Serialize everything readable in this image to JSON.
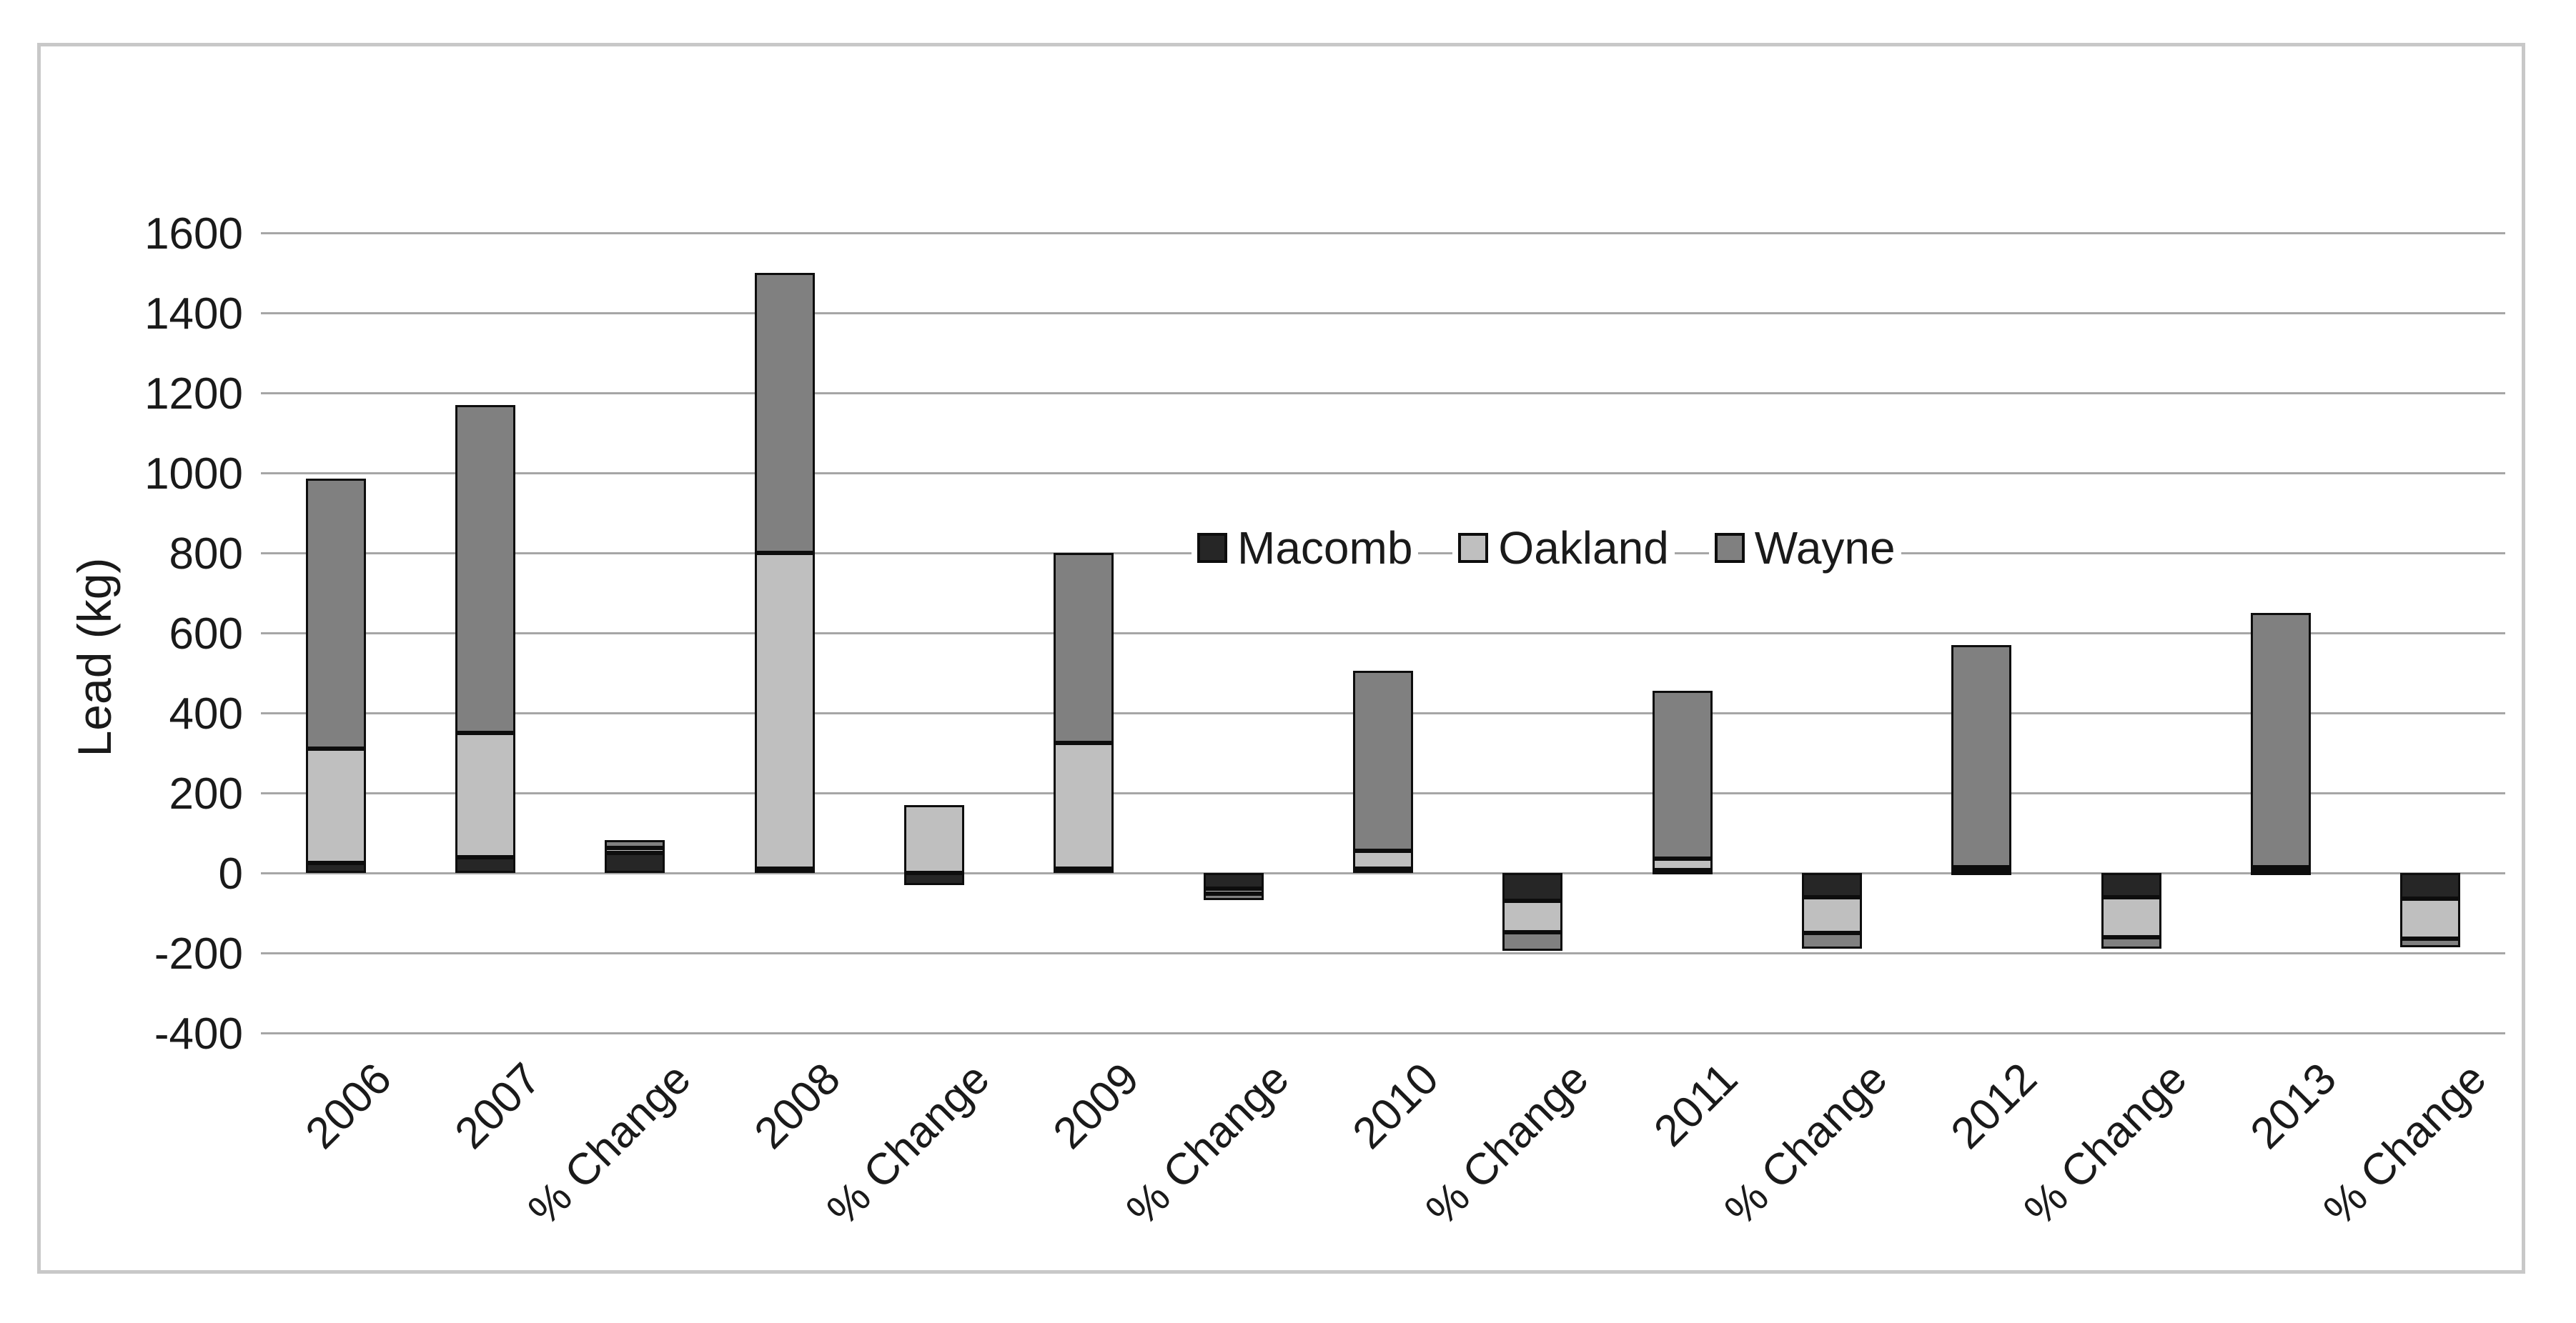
{
  "chart_data": {
    "type": "bar",
    "stacked": true,
    "title": "",
    "xlabel": "",
    "ylabel": "Lead (kg)",
    "ylim": [
      -400,
      1600
    ],
    "ytick_step": 200,
    "ytick_labels": [
      "1600",
      "1400",
      "1200",
      "1000",
      "800",
      "600",
      "400",
      "200",
      "0",
      "-200",
      "-400"
    ],
    "grid": "horizontal",
    "legend_position": "inside-center-right",
    "categories": [
      "2006",
      "2007",
      "% Change",
      "2008",
      "% Change",
      "2009",
      "% Change",
      "2010",
      "% Change",
      "2011",
      "% Change",
      "2012",
      "% Change",
      "2013",
      "% Change"
    ],
    "series": [
      {
        "name": "Macomb",
        "color": "#262626",
        "values": [
          25,
          40,
          50,
          10,
          -30,
          10,
          -40,
          10,
          -70,
          8,
          -60,
          5,
          -60,
          5,
          -65
        ]
      },
      {
        "name": "Oakland",
        "color": "#bfbfbf",
        "values": [
          285,
          310,
          12,
          790,
          170,
          315,
          -12,
          45,
          -78,
          27,
          -90,
          10,
          -100,
          10,
          -100
        ]
      },
      {
        "name": "Wayne",
        "color": "#808080",
        "values": [
          675,
          820,
          20,
          700,
          0,
          475,
          -15,
          450,
          -47,
          420,
          -40,
          555,
          -30,
          635,
          -20
        ]
      }
    ],
    "totals_by_category": [
      985,
      1170,
      82,
      1500,
      140,
      800,
      -67,
      505,
      -195,
      455,
      -190,
      570,
      -190,
      650,
      -185
    ]
  },
  "colors": {
    "frame_border": "#c8c8c8",
    "gridline": "#a6a6a6",
    "bar_border": "#0d0d0d",
    "text": "#1a1a1a",
    "background": "#ffffff"
  }
}
